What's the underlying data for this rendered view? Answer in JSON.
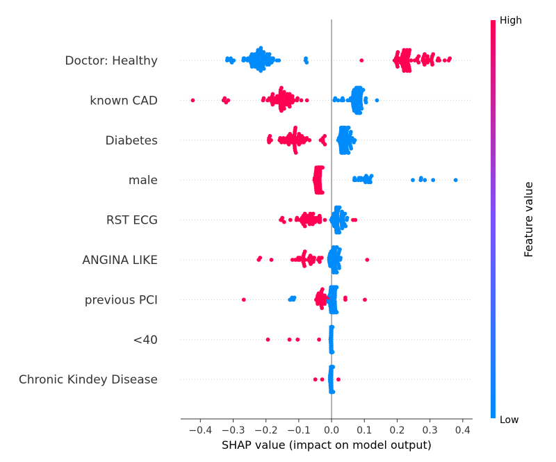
{
  "chart_data": {
    "type": "scatter",
    "subtype": "shap-beeswarm",
    "xlabel": "SHAP value (impact on model output)",
    "xlim": [
      -0.46,
      0.43
    ],
    "x_ticks": [
      -0.4,
      -0.3,
      -0.2,
      -0.1,
      0.0,
      0.1,
      0.2,
      0.3,
      0.4
    ],
    "x_tick_labels": [
      "−0.4",
      "−0.3",
      "−0.2",
      "−0.1",
      "0.0",
      "0.1",
      "0.2",
      "0.3",
      "0.4"
    ],
    "colorbar": {
      "title": "Feature value",
      "high_label": "High",
      "low_label": "Low",
      "high_color": "#ff0052",
      "low_color": "#008bfb"
    },
    "features": [
      {
        "name": "Doctor: Healthy",
        "clusters": [
          {
            "center": -0.22,
            "spread": 0.045,
            "count": 70,
            "value": 0.0
          },
          {
            "center": -0.31,
            "spread": 0.012,
            "count": 6,
            "value": 0.0
          },
          {
            "center": -0.08,
            "spread": 0.01,
            "count": 3,
            "value": 0.0
          },
          {
            "center": 0.22,
            "spread": 0.03,
            "count": 48,
            "value": 1.0
          },
          {
            "center": 0.3,
            "spread": 0.03,
            "count": 24,
            "value": 1.0
          },
          {
            "center": 0.36,
            "spread": 0.005,
            "count": 2,
            "value": 1.0
          },
          {
            "center": 0.09,
            "spread": 0.003,
            "count": 1,
            "value": 1.0
          }
        ]
      },
      {
        "name": "known CAD",
        "clusters": [
          {
            "center": 0.08,
            "spread": 0.022,
            "count": 70,
            "value": 0.0
          },
          {
            "center": 0.14,
            "spread": 0.003,
            "count": 1,
            "value": 0.0
          },
          {
            "center": 0.02,
            "spread": 0.02,
            "count": 6,
            "value": 0.0
          },
          {
            "center": -0.15,
            "spread": 0.05,
            "count": 60,
            "value": 1.0
          },
          {
            "center": -0.32,
            "spread": 0.015,
            "count": 4,
            "value": 1.0
          },
          {
            "center": -0.42,
            "spread": 0.003,
            "count": 1,
            "value": 1.0
          }
        ]
      },
      {
        "name": "Diabetes",
        "clusters": [
          {
            "center": 0.04,
            "spread": 0.022,
            "count": 75,
            "value": 0.0
          },
          {
            "center": -0.12,
            "spread": 0.04,
            "count": 48,
            "value": 1.0
          },
          {
            "center": -0.19,
            "spread": 0.01,
            "count": 5,
            "value": 1.0
          },
          {
            "center": -0.03,
            "spread": 0.012,
            "count": 6,
            "value": 1.0
          }
        ]
      },
      {
        "name": "male",
        "clusters": [
          {
            "center": -0.04,
            "spread": 0.012,
            "count": 65,
            "value": 1.0
          },
          {
            "center": 0.1,
            "spread": 0.03,
            "count": 18,
            "value": 0.0
          },
          {
            "center": 0.28,
            "spread": 0.04,
            "count": 5,
            "value": 0.0
          },
          {
            "center": 0.38,
            "spread": 0.005,
            "count": 1,
            "value": 0.0
          }
        ]
      },
      {
        "name": "RST ECG",
        "clusters": [
          {
            "center": 0.02,
            "spread": 0.02,
            "count": 60,
            "value": 0.0
          },
          {
            "center": -0.07,
            "spread": 0.04,
            "count": 40,
            "value": 1.0
          },
          {
            "center": -0.15,
            "spread": 0.01,
            "count": 4,
            "value": 1.0
          },
          {
            "center": 0.07,
            "spread": 0.005,
            "count": 2,
            "value": 1.0
          }
        ]
      },
      {
        "name": "ANGINA LIKE",
        "clusters": [
          {
            "center": 0.01,
            "spread": 0.015,
            "count": 55,
            "value": 0.0
          },
          {
            "center": -0.07,
            "spread": 0.04,
            "count": 30,
            "value": 1.0
          },
          {
            "center": -0.22,
            "spread": 0.005,
            "count": 2,
            "value": 1.0
          },
          {
            "center": -0.18,
            "spread": 0.005,
            "count": 1,
            "value": 1.0
          },
          {
            "center": 0.11,
            "spread": 0.003,
            "count": 1,
            "value": 1.0
          }
        ]
      },
      {
        "name": "previous PCI",
        "clusters": [
          {
            "center": 0.005,
            "spread": 0.012,
            "count": 65,
            "value": 0.0
          },
          {
            "center": -0.03,
            "spread": 0.015,
            "count": 25,
            "value": 1.0
          },
          {
            "center": -0.12,
            "spread": 0.015,
            "count": 5,
            "value": 0.0
          },
          {
            "center": -0.27,
            "spread": 0.003,
            "count": 1,
            "value": 1.0
          },
          {
            "center": 0.1,
            "spread": 0.003,
            "count": 1,
            "value": 1.0
          },
          {
            "center": 0.04,
            "spread": 0.005,
            "count": 2,
            "value": 1.0
          }
        ]
      },
      {
        "name": "<40",
        "clusters": [
          {
            "center": 0.0,
            "spread": 0.003,
            "count": 70,
            "value": 0.0
          },
          {
            "center": -0.19,
            "spread": 0.003,
            "count": 1,
            "value": 1.0
          },
          {
            "center": -0.13,
            "spread": 0.003,
            "count": 1,
            "value": 1.0
          },
          {
            "center": -0.1,
            "spread": 0.003,
            "count": 1,
            "value": 1.0
          },
          {
            "center": -0.04,
            "spread": 0.003,
            "count": 1,
            "value": 1.0
          }
        ]
      },
      {
        "name": "Chronic Kindey Disease",
        "clusters": [
          {
            "center": 0.0,
            "spread": 0.004,
            "count": 70,
            "value": 0.0
          },
          {
            "center": -0.05,
            "spread": 0.003,
            "count": 1,
            "value": 1.0
          },
          {
            "center": -0.03,
            "spread": 0.003,
            "count": 1,
            "value": 1.0
          },
          {
            "center": 0.025,
            "spread": 0.003,
            "count": 1,
            "value": 1.0
          }
        ]
      }
    ]
  }
}
